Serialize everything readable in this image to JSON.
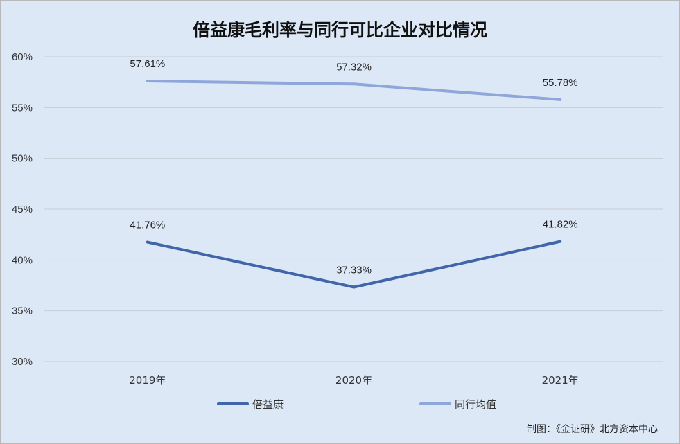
{
  "chart_data": {
    "type": "line",
    "title": "倍益康毛利率与同行可比企业对比情况",
    "categories": [
      "2019年",
      "2020年",
      "2021年"
    ],
    "y_ticks": [
      "30%",
      "35%",
      "40%",
      "45%",
      "50%",
      "55%",
      "60%"
    ],
    "ylim": [
      30,
      60
    ],
    "grid": true,
    "legend_position": "bottom",
    "series": [
      {
        "name": "倍益康",
        "values": [
          41.76,
          37.33,
          41.82
        ],
        "labels": [
          "41.76%",
          "37.33%",
          "41.82%"
        ],
        "color": "#4065a9"
      },
      {
        "name": "同行均值",
        "values": [
          57.61,
          57.32,
          55.78
        ],
        "labels": [
          "57.61%",
          "57.32%",
          "55.78%"
        ],
        "color": "#8fa6da"
      }
    ],
    "source": "制图：《金证研》北方资本中心"
  }
}
